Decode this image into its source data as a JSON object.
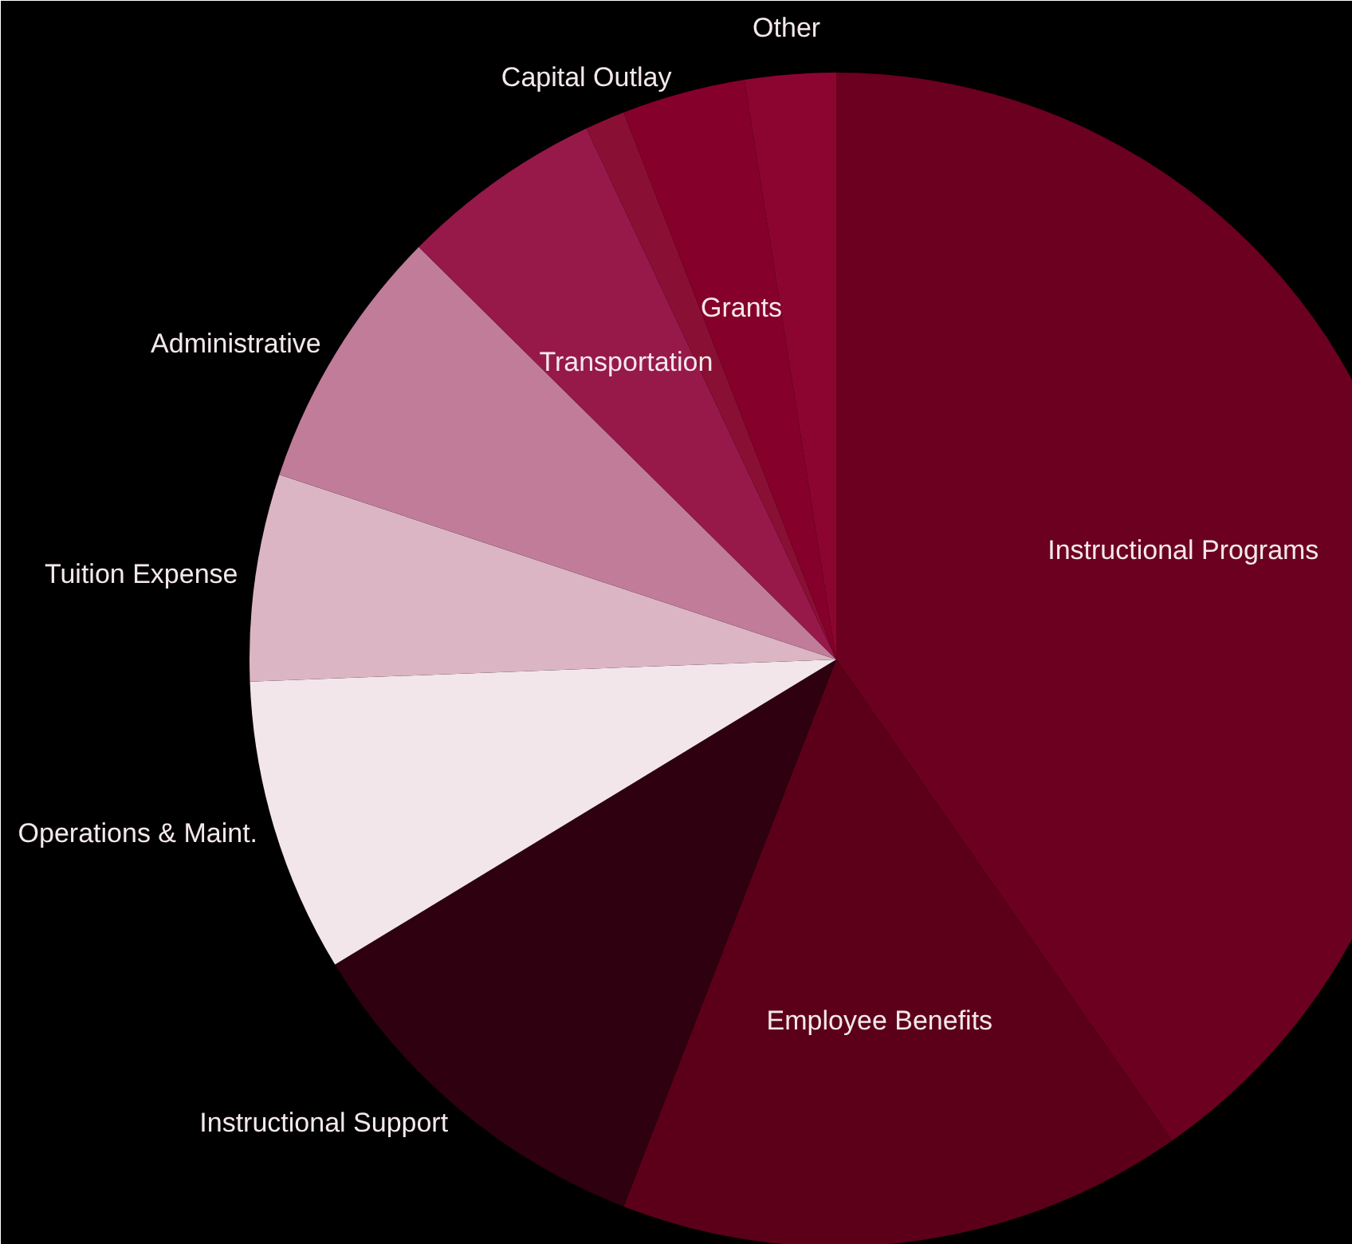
{
  "chart_data": {
    "type": "pie",
    "categories": [
      "Instructional Programs",
      "Employee Benefits",
      "Instructional Support",
      "Operations & Maint.",
      "Tuition Expense",
      "Administrative",
      "Transportation",
      "Capital Outlay",
      "Grants",
      "Other"
    ],
    "values": [
      40.3,
      15.6,
      10.4,
      8.1,
      5.7,
      7.3,
      5.6,
      1.1,
      3.4,
      2.5
    ],
    "colors": [
      "#6b0020",
      "#5c0019",
      "#2e0010",
      "#f2e6ea",
      "#dcb5c4",
      "#c07c98",
      "#96194a",
      "#8a0f35",
      "#85002a",
      "#8c0530"
    ]
  }
}
